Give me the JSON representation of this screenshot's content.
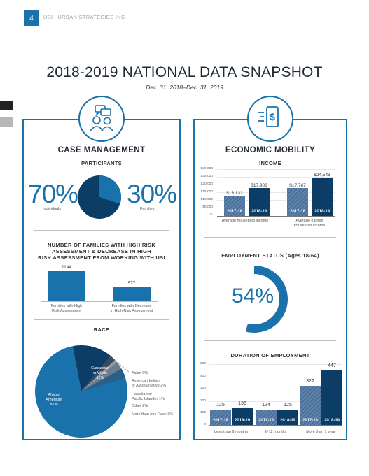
{
  "header": {
    "page_number": "4",
    "org": "USI | URBAN STRATEGIES INC"
  },
  "title": "2018-2019 NATIONAL DATA SNAPSHOT",
  "date_range": "Dec. 31, 2018–Dec. 31, 2019",
  "case_management": {
    "title": "CASE MANAGEMENT",
    "participants": {
      "title": "PARTICIPANTS",
      "individuals_pct": "70%",
      "individuals_label": "Individuals",
      "families_pct": "30%",
      "families_label": "Families"
    },
    "high_risk": {
      "title_line1": "NUMBER OF FAMILIES WITH HIGH RISK",
      "title_line2": "ASSESSMENT & DECREASE IN HIGH",
      "title_line3": "RISK ASSESSMENT FROM WORKING WITH USI",
      "value1": "1144",
      "label1_line1": "Families with High",
      "label1_line2": "Risk Assessment",
      "value2": "577",
      "label2_line1": "Families with Decrease",
      "label2_line2": "in High Risk Assessment"
    },
    "race": {
      "title": "RACE",
      "african_american_line1": "African",
      "african_american_line2": "American",
      "african_american_pct": "81%",
      "caucasian_line1": "Caucasian",
      "caucasian_line2": "or White",
      "caucasian_pct": "11%",
      "asian": "Asian 0%",
      "american_indian_line1": "American Indian",
      "american_indian_line2": "or Alaska Native 2%",
      "hawaiian_line1": "Hawaiian or",
      "hawaiian_line2": "Pacific Islander 1%",
      "other": "Other 2%",
      "more_than_one": "More than one Race 3%"
    }
  },
  "economic_mobility": {
    "title": "ECONOMIC MOBILITY",
    "income": {
      "title": "INCOME",
      "axis": [
        "$30,000",
        "$25,000",
        "$20,000",
        "$15,000",
        "$10,000",
        "$5,000",
        "$-"
      ],
      "year_a": "2017-18",
      "year_b": "2018-19",
      "group1_line1": "Average household income",
      "group2_line1": "Average earned",
      "group2_line2": "household income",
      "values": [
        "$13,132",
        "$17,908",
        "$17,767",
        "$24,543"
      ]
    },
    "employment": {
      "title": "EMPLOYMENT STATUS (Ages 18-64)",
      "pct": "54%"
    },
    "duration": {
      "title": "DURATION OF EMPLOYMENT",
      "axis": [
        "500",
        "400",
        "300",
        "200",
        "100",
        "0"
      ],
      "year_a": "2017-18",
      "year_b": "2018-19",
      "values": [
        "125",
        "136",
        "124",
        "125",
        "322",
        "447"
      ],
      "group1": "Less than 6 months",
      "group2": "6-12 months",
      "group3": "More than 1 year"
    }
  },
  "colors": {
    "accent": "#1a72ad",
    "navy": "#0b3d66"
  },
  "icons": [
    "people-chat-icon",
    "dollar-bill-icon"
  ]
}
